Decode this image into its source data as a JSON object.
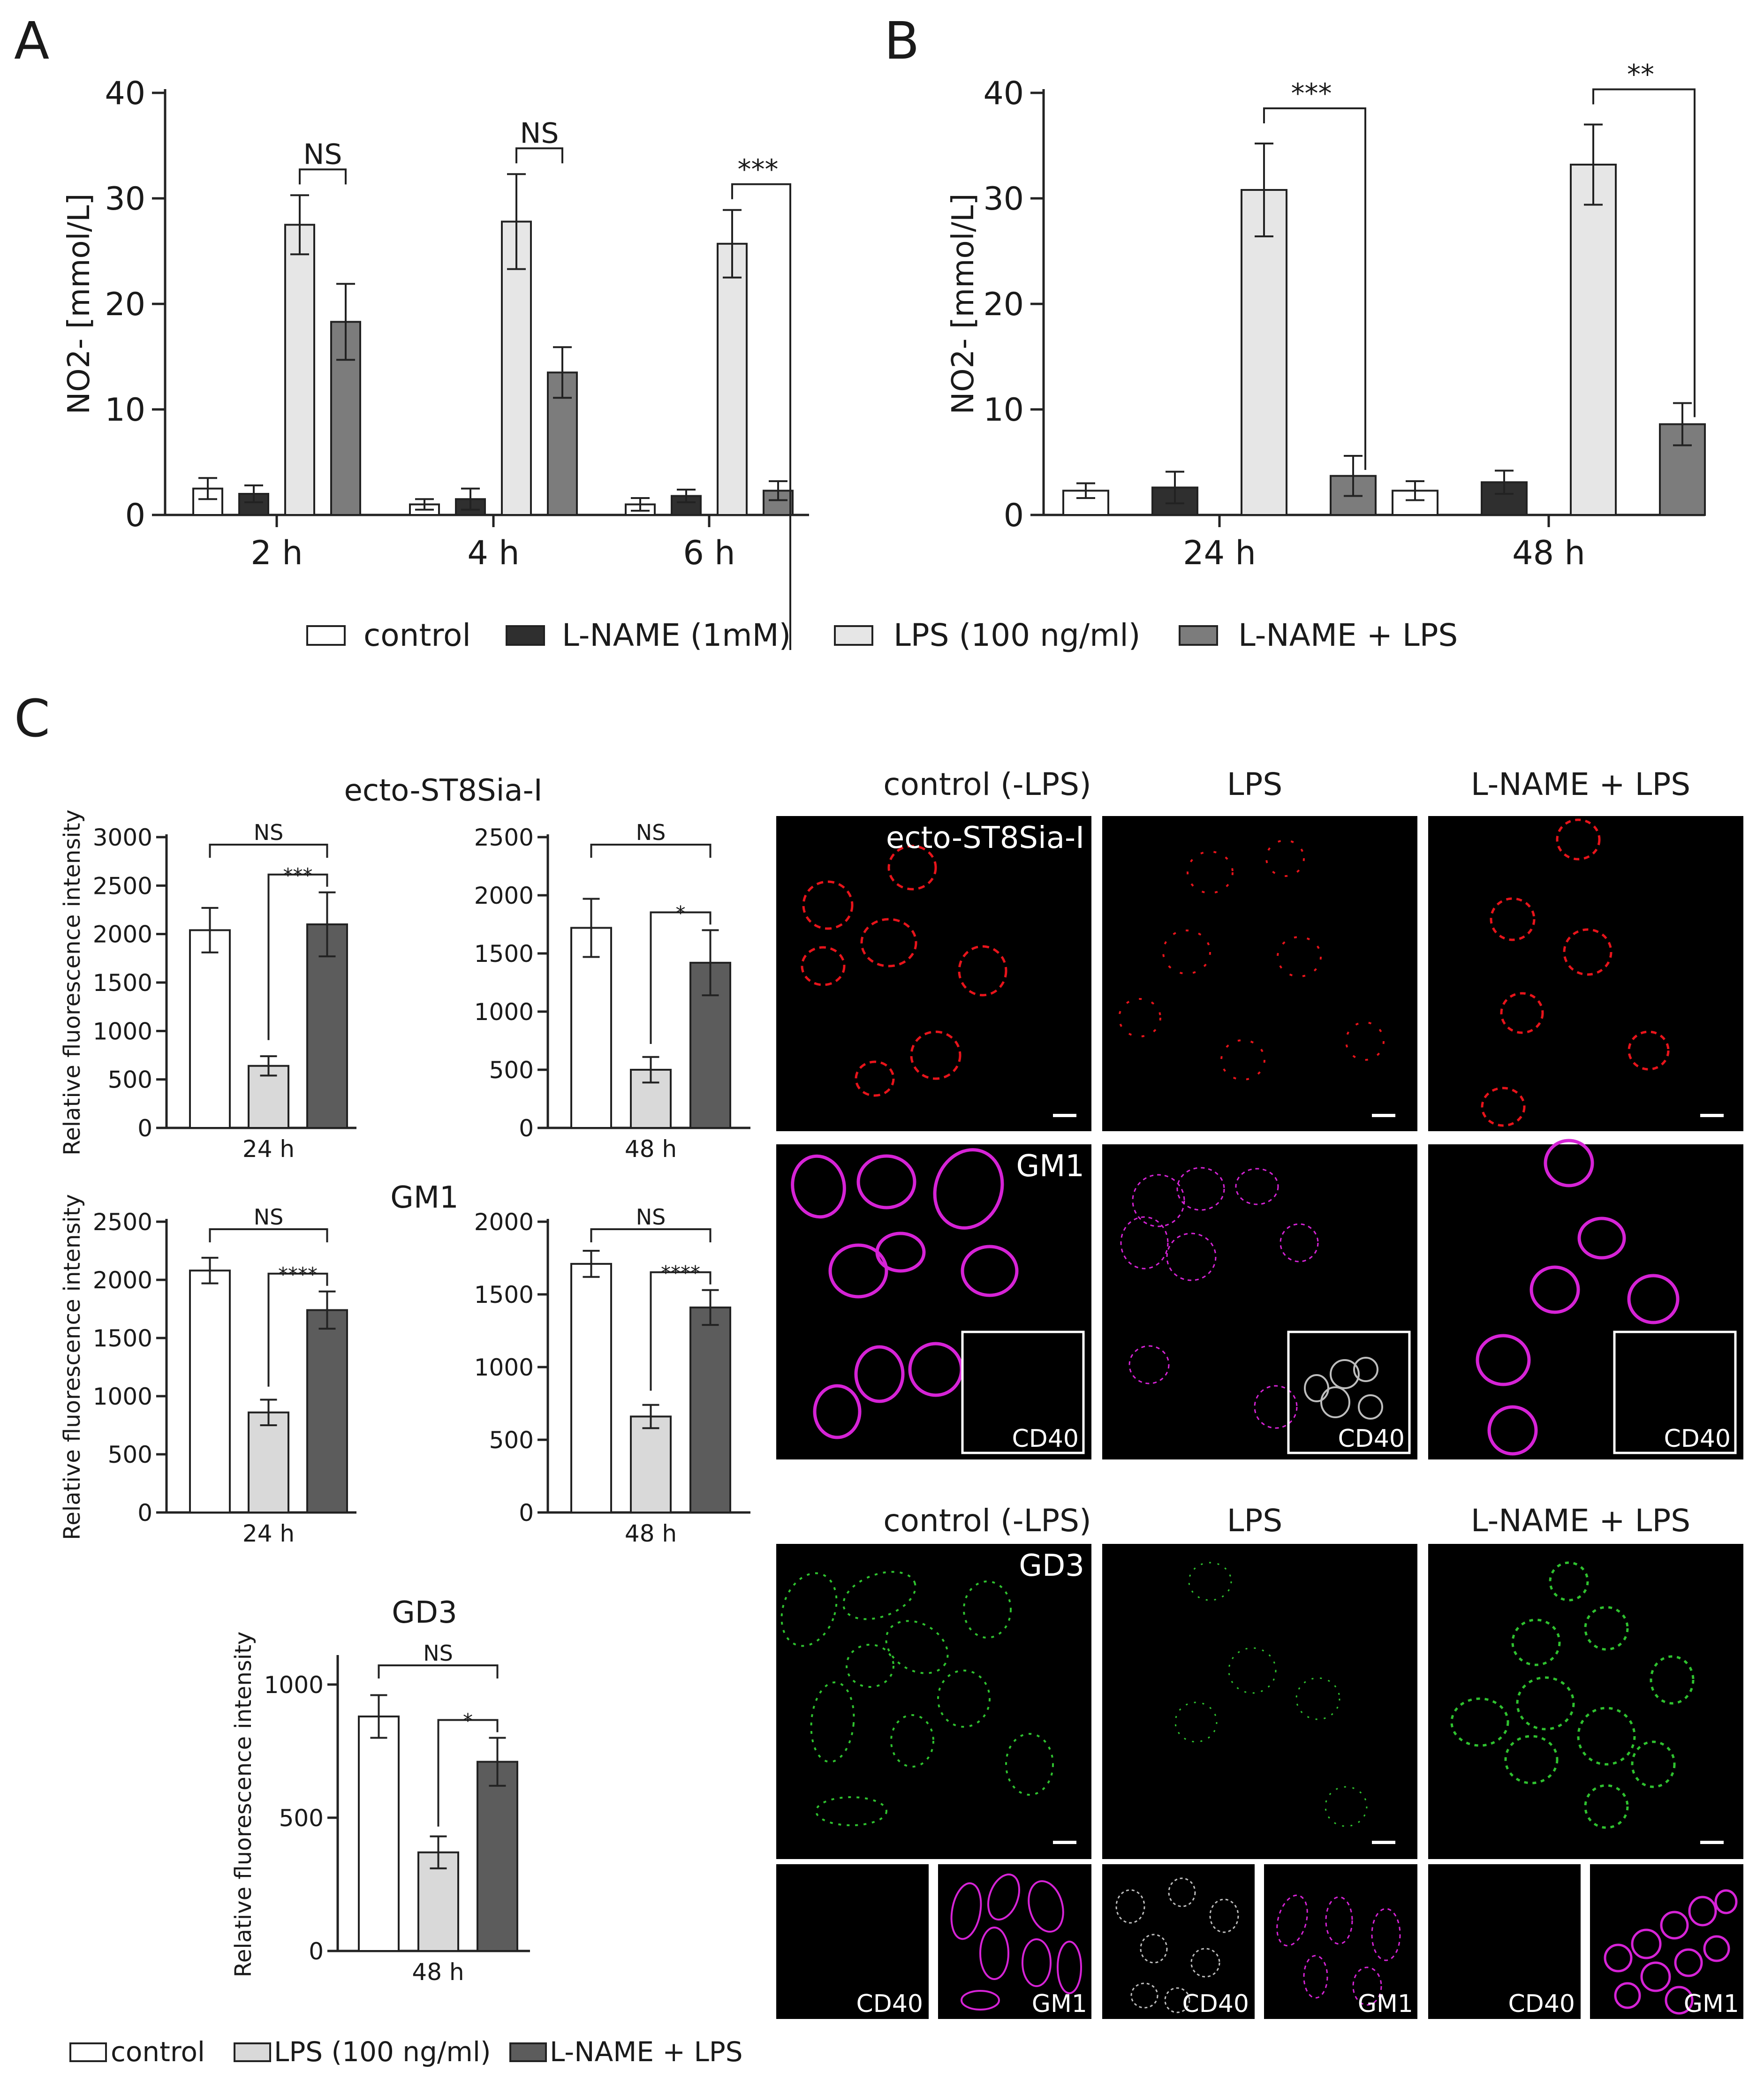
{
  "figure": {
    "panel_labels": [
      "A",
      "B",
      "C"
    ],
    "colors": {
      "control": "#ffffff",
      "lname": "#2f2f2f",
      "lps_ab": "#e6e6e6",
      "lname_lps_ab": "#7c7c7c",
      "lps_c": "#d9d9d9",
      "lname_lps_c": "#5c5c5c",
      "red": "#e8141b",
      "magenta": "#d623d6",
      "green": "#2fc22f",
      "gray_cells": "#bdbdbd"
    },
    "legend_ab": [
      "control",
      "L-NAME (1mM)",
      "LPS (100 ng/ml)",
      "L-NAME + LPS"
    ],
    "legend_c": [
      "control",
      "LPS (100 ng/ml)",
      "L-NAME + LPS"
    ]
  },
  "chart_data": [
    {
      "id": "A",
      "type": "bar",
      "ylabel": "NO2- [mmol/L]",
      "ylim": [
        0,
        40
      ],
      "yticks": [
        "0",
        "10",
        "20",
        "30",
        "40"
      ],
      "categories": [
        "2 h",
        "4 h",
        "6 h"
      ],
      "series": [
        {
          "name": "control",
          "values": [
            2.5,
            1.0,
            1.0
          ],
          "errors": [
            1.0,
            0.5,
            0.6
          ]
        },
        {
          "name": "L-NAME (1mM)",
          "values": [
            2.0,
            1.5,
            1.8
          ],
          "errors": [
            0.8,
            1.0,
            0.6
          ]
        },
        {
          "name": "LPS (100 ng/ml)",
          "values": [
            27.5,
            27.8,
            25.7
          ],
          "errors": [
            2.8,
            4.5,
            3.2
          ]
        },
        {
          "name": "L-NAME + LPS",
          "values": [
            18.3,
            13.5,
            2.3
          ],
          "errors": [
            3.6,
            2.4,
            0.9
          ]
        }
      ],
      "annotations": [
        "NS",
        "NS",
        "***"
      ]
    },
    {
      "id": "B",
      "type": "bar",
      "ylabel": "NO2- [mmol/L]",
      "ylim": [
        0,
        40
      ],
      "yticks": [
        "0",
        "10",
        "20",
        "30",
        "40"
      ],
      "categories": [
        "24 h",
        "48 h"
      ],
      "series": [
        {
          "name": "control",
          "values": [
            2.3,
            2.3
          ],
          "errors": [
            0.7,
            0.9
          ]
        },
        {
          "name": "L-NAME (1mM)",
          "values": [
            2.6,
            3.1
          ],
          "errors": [
            1.5,
            1.1
          ]
        },
        {
          "name": "LPS (100 ng/ml)",
          "values": [
            30.8,
            33.2
          ],
          "errors": [
            4.4,
            3.8
          ]
        },
        {
          "name": "L-NAME + LPS",
          "values": [
            3.7,
            8.6
          ],
          "errors": [
            1.9,
            2.0
          ]
        }
      ],
      "annotations": [
        "***",
        "**"
      ]
    },
    {
      "id": "C-ST8-24",
      "type": "bar",
      "group_title": "ecto-ST8Sia-I",
      "ylabel": "Relative fluorescence intensity",
      "xlabel": "24 h",
      "ylim": [
        0,
        3000
      ],
      "yticks": [
        "0",
        "500",
        "1000",
        "1500",
        "2000",
        "2500",
        "3000"
      ],
      "values": [
        2040,
        640,
        2100
      ],
      "errors": [
        230,
        100,
        330
      ],
      "annotations": [
        "NS",
        "***"
      ]
    },
    {
      "id": "C-ST8-48",
      "type": "bar",
      "xlabel": "48 h",
      "ylim": [
        0,
        2500
      ],
      "yticks": [
        "0",
        "500",
        "1000",
        "1500",
        "2000",
        "2500"
      ],
      "values": [
        1720,
        500,
        1420
      ],
      "errors": [
        250,
        110,
        280
      ],
      "annotations": [
        "NS",
        "*"
      ]
    },
    {
      "id": "C-GM1-24",
      "type": "bar",
      "group_title": "GM1",
      "ylabel": "Relative fluorescence intensity",
      "xlabel": "24 h",
      "ylim": [
        0,
        2500
      ],
      "yticks": [
        "0",
        "500",
        "1000",
        "1500",
        "2000",
        "2500"
      ],
      "values": [
        2080,
        860,
        1740
      ],
      "errors": [
        110,
        110,
        160
      ],
      "annotations": [
        "NS",
        "****"
      ]
    },
    {
      "id": "C-GM1-48",
      "type": "bar",
      "xlabel": "48 h",
      "ylim": [
        0,
        2000
      ],
      "yticks": [
        "0",
        "500",
        "1000",
        "1500",
        "2000"
      ],
      "values": [
        1710,
        660,
        1410
      ],
      "errors": [
        90,
        80,
        120
      ],
      "annotations": [
        "NS",
        "****"
      ]
    },
    {
      "id": "C-GD3-48",
      "type": "bar",
      "group_title": "GD3",
      "ylabel": "Relative fluorescence intensity",
      "xlabel": "48 h",
      "ylim": [
        0,
        1100
      ],
      "yticks": [
        "0",
        "500",
        "1000"
      ],
      "values": [
        880,
        370,
        710
      ],
      "errors": [
        80,
        60,
        90
      ],
      "annotations": [
        "NS",
        "*"
      ]
    }
  ],
  "microscopy": {
    "col_titles": [
      "control (-LPS)",
      "LPS",
      "L-NAME + LPS"
    ],
    "row1_label": "ecto-ST8Sia-I",
    "row2_label": "GM1",
    "row3_label": "GD3",
    "inset_label": "CD40",
    "small_labels": [
      "CD40",
      "GM1"
    ]
  }
}
